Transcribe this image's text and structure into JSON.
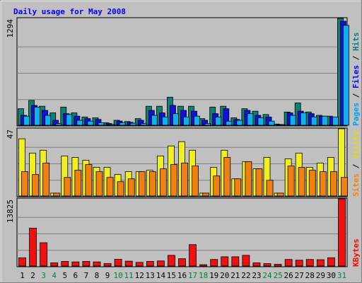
{
  "chart_data": {
    "type": "bar",
    "title": "Daily usage for May 2008",
    "categories": [
      "1",
      "2",
      "3",
      "4",
      "5",
      "6",
      "7",
      "8",
      "9",
      "10",
      "11",
      "12",
      "13",
      "14",
      "15",
      "16",
      "17",
      "18",
      "19",
      "20",
      "21",
      "22",
      "23",
      "24",
      "25",
      "26",
      "27",
      "28",
      "29",
      "30",
      "31"
    ],
    "weekend_days": [
      "3",
      "4",
      "10",
      "11",
      "17",
      "18",
      "24",
      "25",
      "31"
    ],
    "panels": [
      {
        "id": "hits",
        "ylim": [
          0,
          1294
        ],
        "max_label": "1294",
        "grid": true,
        "right_labels": [
          {
            "text": "Pages",
            "color": "#00a0ff"
          },
          {
            "text": " / ",
            "color": "#000000"
          },
          {
            "text": "Files",
            "color": "#0000ff"
          },
          {
            "text": " / ",
            "color": "#000000"
          },
          {
            "text": "Hits",
            "color": "#008080"
          }
        ],
        "series": [
          {
            "name": "Hits",
            "color": "#108070",
            "values": [
              200,
              300,
              230,
              150,
              220,
              150,
              100,
              90,
              30,
              60,
              45,
              80,
              230,
              230,
              340,
              230,
              230,
              80,
              220,
              230,
              90,
              200,
              170,
              130,
              15,
              160,
              270,
              160,
              120,
              110,
              1294
            ]
          },
          {
            "name": "Files",
            "color": "#1010e0",
            "values": [
              120,
              240,
              180,
              60,
              140,
              110,
              80,
              70,
              20,
              50,
              35,
              60,
              180,
              150,
              240,
              180,
              170,
              60,
              140,
              200,
              70,
              180,
              120,
              100,
              10,
              150,
              170,
              140,
              110,
              100,
              1260
            ]
          },
          {
            "name": "Pages",
            "color": "#10b0f0",
            "values": [
              110,
              220,
              120,
              20,
              130,
              60,
              50,
              30,
              10,
              30,
              25,
              20,
              120,
              100,
              140,
              100,
              110,
              20,
              100,
              50,
              60,
              140,
              90,
              50,
              5,
              120,
              150,
              100,
              110,
              100,
              1210
            ]
          }
        ]
      },
      {
        "id": "visits",
        "ylim": [
          0,
          47
        ],
        "max_label": "47",
        "grid": true,
        "right_labels": [
          {
            "text": "Sites",
            "color": "#ff8000"
          },
          {
            "text": " / ",
            "color": "#000000"
          },
          {
            "text": "Visits",
            "color": "#e0e000"
          }
        ],
        "series": [
          {
            "name": "Visits",
            "color": "#f0f020",
            "values": [
              40,
              30,
              32,
              2,
              28,
              27,
              25,
              20,
              20,
              15,
              17,
              17,
              18,
              28,
              35,
              38,
              32,
              2,
              20,
              32,
              12,
              24,
              19,
              27,
              2,
              26,
              30,
              20,
              23,
              27,
              47
            ]
          },
          {
            "name": "Sites",
            "color": "#f08010",
            "values": [
              17,
              15,
              23,
              2,
              13,
              18,
              22,
              17,
              13,
              10,
              12,
              17,
              17,
              19,
              22,
              23,
              21,
              2,
              14,
              27,
              12,
              24,
              19,
              11,
              2,
              21,
              20,
              18,
              17,
              17,
              13
            ]
          }
        ]
      },
      {
        "id": "kbytes",
        "ylim": [
          0,
          13825
        ],
        "max_label": "13825",
        "grid": true,
        "right_labels": [
          {
            "text": "KBytes",
            "color": "#ff0000"
          }
        ],
        "series": [
          {
            "name": "KBytes",
            "color": "#f01010",
            "values": [
              1700,
              7800,
              4800,
              650,
              950,
              850,
              950,
              850,
              500,
              1400,
              1000,
              750,
              950,
              1050,
              2200,
              1500,
              4400,
              280,
              1350,
              1900,
              1900,
              2200,
              650,
              500,
              350,
              1350,
              1200,
              1350,
              1300,
              1700,
              13825
            ]
          }
        ]
      }
    ]
  },
  "colors": {
    "background": "#ffffff",
    "frame_bg": "#c0c0c0",
    "plot_bg": "#c0c0c0",
    "title": "#0000ff",
    "weekday_label": "#000000",
    "weekend_label": "#008040"
  }
}
